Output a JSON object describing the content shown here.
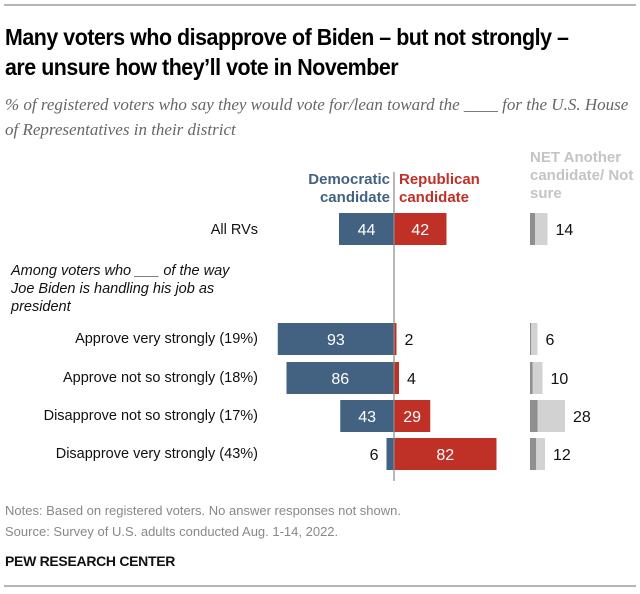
{
  "title": "Many voters who disapprove of Biden – but not strongly – are unsure how they’ll vote in November",
  "subtitle": "% of registered voters who say they would vote for/lean toward the ____ for the U.S. House of Representatives in their district",
  "group_note": "Among voters who ___ of the way Joe Biden is handling his job as president",
  "notes": "Notes: Based on registered voters. No answer responses not shown.",
  "source": "Source: Survey of U.S. adults conducted Aug. 1-14, 2022.",
  "brand": "PEW RESEARCH CENTER",
  "colors": {
    "democratic": "#436282",
    "republican": "#bf3026",
    "net_another": "#8f8f8f",
    "net_not_sure": "#d2d2d2",
    "axis": "#8a8a8a"
  },
  "chart_data": {
    "type": "bar",
    "orientation": "horizontal-diverging",
    "title": "Many voters who disapprove of Biden – but not strongly – are unsure how they’ll vote in November",
    "column_headers": {
      "democratic": "Democratic candidate",
      "republican": "Republican candidate",
      "net": "NET Another candidate/ Not sure"
    },
    "categories": [
      "All RVs",
      "Approve very strongly (19%)",
      "Approve not so strongly (18%)",
      "Disapprove not so strongly (17%)",
      "Disapprove very strongly (43%)"
    ],
    "series": [
      {
        "name": "Democratic candidate",
        "values": [
          44,
          93,
          86,
          43,
          6
        ]
      },
      {
        "name": "Republican candidate",
        "values": [
          42,
          2,
          4,
          29,
          82
        ]
      },
      {
        "name": "NET Another candidate/Not sure",
        "values": [
          14,
          6,
          10,
          28,
          12
        ]
      },
      {
        "name": "Another candidate (dark segment, estimated)",
        "values": [
          4,
          1,
          2,
          6,
          5
        ]
      },
      {
        "name": "Not sure (light segment, estimated)",
        "values": [
          10,
          5,
          8,
          22,
          7
        ]
      }
    ],
    "xlabel": "",
    "ylabel": ""
  }
}
